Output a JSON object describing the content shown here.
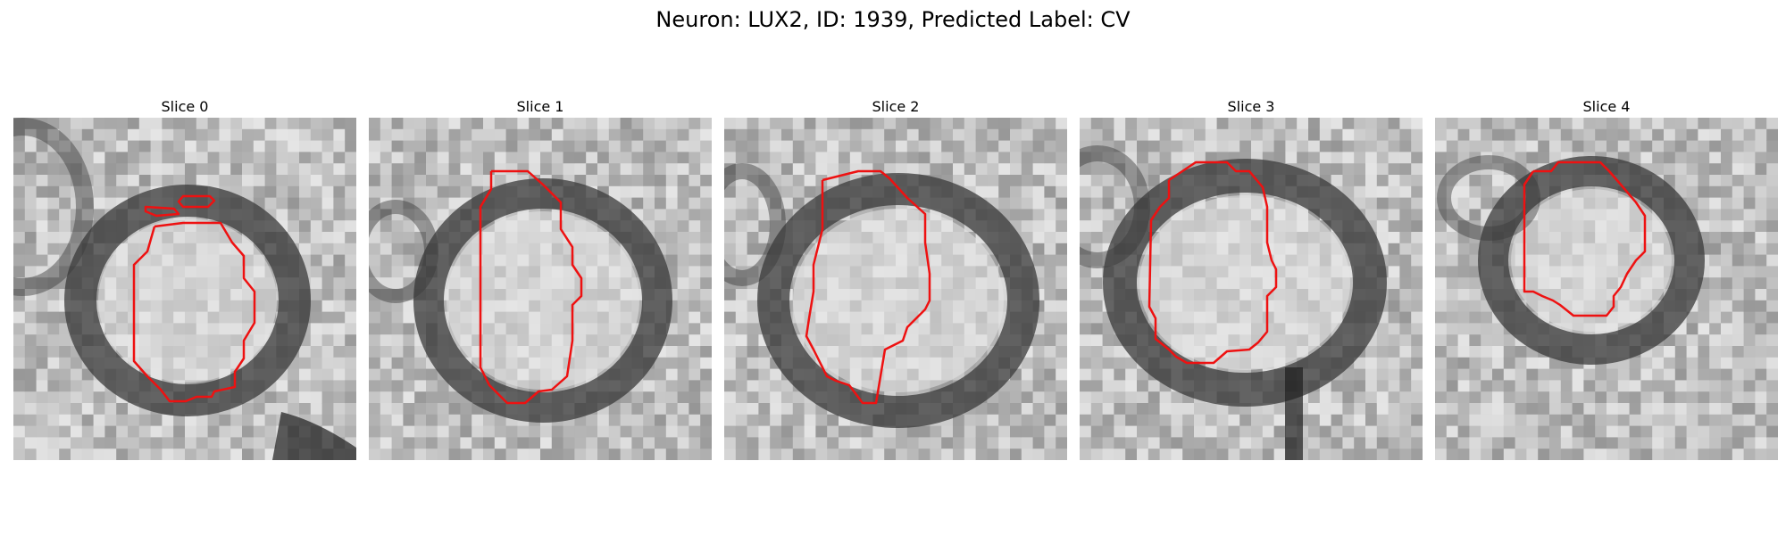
{
  "figure": {
    "title": "Neuron: LUX2, ID: 1939, Predicted Label: CV"
  },
  "panels": [
    {
      "title": "Slice 0"
    },
    {
      "title": "Slice 1"
    },
    {
      "title": "Slice 2"
    },
    {
      "title": "Slice 3"
    },
    {
      "title": "Slice 4"
    }
  ],
  "colors": {
    "contour": "#ee1111",
    "cell_interior": "#e6e6e6",
    "membrane": "#3a3a3a",
    "background": "#b9b9b9"
  }
}
